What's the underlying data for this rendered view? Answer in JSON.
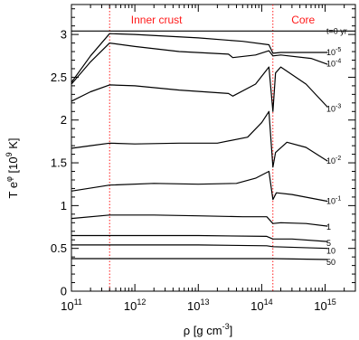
{
  "chart_data": {
    "type": "line",
    "xlabel": {
      "base": "ρ [g cm",
      "sup": "-3",
      "tail": "]"
    },
    "ylabel": {
      "pre": "T e",
      "sup1": "φ",
      "mid": " [10",
      "sup2": "9",
      "tail": " K]"
    },
    "xscale": "log",
    "xlim": [
      100000000000.0,
      3000000000000000.0
    ],
    "ylim": [
      0,
      3.35
    ],
    "x_ticks": [
      {
        "value": 100000000000.0,
        "base": "10",
        "exp": "11"
      },
      {
        "value": 1000000000000.0,
        "base": "10",
        "exp": "12"
      },
      {
        "value": 10000000000000.0,
        "base": "10",
        "exp": "13"
      },
      {
        "value": 100000000000000.0,
        "base": "10",
        "exp": "14"
      },
      {
        "value": 1000000000000000.0,
        "base": "10",
        "exp": "15"
      }
    ],
    "y_ticks": [
      {
        "value": 0,
        "label": "0"
      },
      {
        "value": 0.5,
        "label": "0.5"
      },
      {
        "value": 1,
        "label": "1"
      },
      {
        "value": 1.5,
        "label": "1.5"
      },
      {
        "value": 2,
        "label": "2"
      },
      {
        "value": 2.5,
        "label": "2.5"
      },
      {
        "value": 3,
        "label": "3"
      }
    ],
    "regions": [
      {
        "label": "Inner crust",
        "x_start": 400000000000.0,
        "x_end": 150000000000000.0,
        "label_at": 2200000000000.0
      },
      {
        "label": "Core",
        "x_start": 150000000000000.0,
        "x_end": 1000000000000000.0,
        "label_at": 450000000000000.0
      }
    ],
    "boundaries": [
      400000000000.0,
      150000000000000.0
    ],
    "boundary_color": "#ff1a1a",
    "line_color": "#000000",
    "series": [
      {
        "name": "t=0 yr",
        "label": {
          "base": "t=0 yr"
        },
        "label_y": 3.04,
        "points": [
          [
            100000000000.0,
            3.04
          ],
          [
            3000000000000000.0,
            3.04
          ]
        ]
      },
      {
        "name": "10^-5",
        "label": {
          "base": "10",
          "exp": "-5"
        },
        "label_y": 2.79,
        "points": [
          [
            100000000000.0,
            2.44
          ],
          [
            200000000000.0,
            2.75
          ],
          [
            400000000000.0,
            3.01
          ],
          [
            1000000000000.0,
            3.0
          ],
          [
            10000000000000.0,
            2.96
          ],
          [
            50000000000000.0,
            2.92
          ],
          [
            130000000000000.0,
            2.88
          ],
          [
            150000000000000.0,
            2.78
          ],
          [
            200000000000000.0,
            2.79
          ],
          [
            500000000000000.0,
            2.79
          ],
          [
            1100000000000000.0,
            2.79
          ]
        ]
      },
      {
        "name": "10^-4",
        "label": {
          "base": "10",
          "exp": "-4"
        },
        "label_y": 2.66,
        "points": [
          [
            100000000000.0,
            2.42
          ],
          [
            200000000000.0,
            2.68
          ],
          [
            400000000000.0,
            2.9
          ],
          [
            1000000000000.0,
            2.86
          ],
          [
            5000000000000.0,
            2.8
          ],
          [
            30000000000000.0,
            2.77
          ],
          [
            35000000000000.0,
            2.73
          ],
          [
            80000000000000.0,
            2.76
          ],
          [
            130000000000000.0,
            2.81
          ],
          [
            150000000000000.0,
            2.75
          ],
          [
            200000000000000.0,
            2.76
          ],
          [
            600000000000000.0,
            2.72
          ],
          [
            1100000000000000.0,
            2.65
          ]
        ]
      },
      {
        "name": "10^-3",
        "label": {
          "base": "10",
          "exp": "-3"
        },
        "label_y": 2.13,
        "points": [
          [
            100000000000.0,
            2.22
          ],
          [
            200000000000.0,
            2.33
          ],
          [
            400000000000.0,
            2.41
          ],
          [
            1000000000000.0,
            2.4
          ],
          [
            5000000000000.0,
            2.35
          ],
          [
            30000000000000.0,
            2.31
          ],
          [
            35000000000000.0,
            2.28
          ],
          [
            80000000000000.0,
            2.42
          ],
          [
            130000000000000.0,
            2.62
          ],
          [
            150000000000000.0,
            2.1
          ],
          [
            165000000000000.0,
            2.55
          ],
          [
            200000000000000.0,
            2.62
          ],
          [
            500000000000000.0,
            2.42
          ],
          [
            1100000000000000.0,
            2.15
          ]
        ]
      },
      {
        "name": "10^-2",
        "label": {
          "base": "10",
          "exp": "-2"
        },
        "label_y": 1.52,
        "points": [
          [
            100000000000.0,
            1.67
          ],
          [
            200000000000.0,
            1.7
          ],
          [
            400000000000.0,
            1.73
          ],
          [
            1000000000000.0,
            1.72
          ],
          [
            5000000000000.0,
            1.73
          ],
          [
            20000000000000.0,
            1.73
          ],
          [
            60000000000000.0,
            1.8
          ],
          [
            100000000000000.0,
            1.97
          ],
          [
            130000000000000.0,
            2.1
          ],
          [
            150000000000000.0,
            1.45
          ],
          [
            165000000000000.0,
            1.62
          ],
          [
            250000000000000.0,
            1.74
          ],
          [
            500000000000000.0,
            1.68
          ],
          [
            1100000000000000.0,
            1.52
          ]
        ]
      },
      {
        "name": "10^-1",
        "label": {
          "base": "10",
          "exp": "-1"
        },
        "label_y": 1.05,
        "points": [
          [
            100000000000.0,
            1.17
          ],
          [
            400000000000.0,
            1.24
          ],
          [
            2000000000000.0,
            1.26
          ],
          [
            10000000000000.0,
            1.25
          ],
          [
            40000000000000.0,
            1.26
          ],
          [
            80000000000000.0,
            1.32
          ],
          [
            130000000000000.0,
            1.4
          ],
          [
            150000000000000.0,
            1.07
          ],
          [
            170000000000000.0,
            1.15
          ],
          [
            300000000000000.0,
            1.13
          ],
          [
            1100000000000000.0,
            1.05
          ]
        ]
      },
      {
        "name": "1",
        "label": {
          "base": "1"
        },
        "label_y": 0.75,
        "points": [
          [
            100000000000.0,
            0.85
          ],
          [
            400000000000.0,
            0.89
          ],
          [
            2000000000000.0,
            0.89
          ],
          [
            10000000000000.0,
            0.88
          ],
          [
            50000000000000.0,
            0.87
          ],
          [
            120000000000000.0,
            0.87
          ],
          [
            150000000000000.0,
            0.79
          ],
          [
            200000000000000.0,
            0.8
          ],
          [
            500000000000000.0,
            0.79
          ],
          [
            1100000000000000.0,
            0.76
          ]
        ]
      },
      {
        "name": "5",
        "label": {
          "base": "5"
        },
        "label_y": 0.56,
        "points": [
          [
            100000000000.0,
            0.65
          ],
          [
            1000000000000.0,
            0.65
          ],
          [
            10000000000000.0,
            0.65
          ],
          [
            120000000000000.0,
            0.64
          ],
          [
            150000000000000.0,
            0.61
          ],
          [
            300000000000000.0,
            0.61
          ],
          [
            1100000000000000.0,
            0.58
          ]
        ]
      },
      {
        "name": "10",
        "label": {
          "base": "10"
        },
        "label_y": 0.47,
        "points": [
          [
            100000000000.0,
            0.54
          ],
          [
            1000000000000.0,
            0.54
          ],
          [
            10000000000000.0,
            0.54
          ],
          [
            120000000000000.0,
            0.53
          ],
          [
            150000000000000.0,
            0.52
          ],
          [
            1100000000000000.0,
            0.5
          ]
        ]
      },
      {
        "name": "50",
        "label": {
          "base": "50"
        },
        "label_y": 0.34,
        "points": [
          [
            100000000000.0,
            0.38
          ],
          [
            10000000000000.0,
            0.38
          ],
          [
            150000000000000.0,
            0.38
          ],
          [
            1100000000000000.0,
            0.37
          ]
        ]
      }
    ]
  }
}
